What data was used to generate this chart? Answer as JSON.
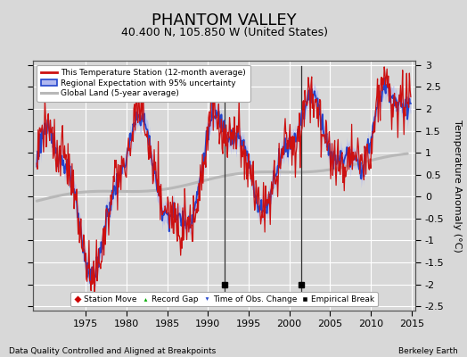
{
  "title": "PHANTOM VALLEY",
  "subtitle": "40.400 N, 105.850 W (United States)",
  "xlabel_bottom": "Data Quality Controlled and Aligned at Breakpoints",
  "xlabel_right": "Berkeley Earth",
  "ylabel": "Temperature Anomaly (°C)",
  "xlim": [
    1968.5,
    2015.5
  ],
  "ylim": [
    -2.6,
    3.1
  ],
  "yticks": [
    -2.5,
    -2,
    -1.5,
    -1,
    -0.5,
    0,
    0.5,
    1,
    1.5,
    2,
    2.5,
    3
  ],
  "xticks": [
    1975,
    1980,
    1985,
    1990,
    1995,
    2000,
    2005,
    2010,
    2015
  ],
  "background_color": "#d8d8d8",
  "plot_bg_color": "#d8d8d8",
  "grid_color": "#ffffff",
  "empirical_breaks": [
    1992.0,
    2001.5
  ],
  "title_fontsize": 13,
  "subtitle_fontsize": 9,
  "axis_fontsize": 8
}
